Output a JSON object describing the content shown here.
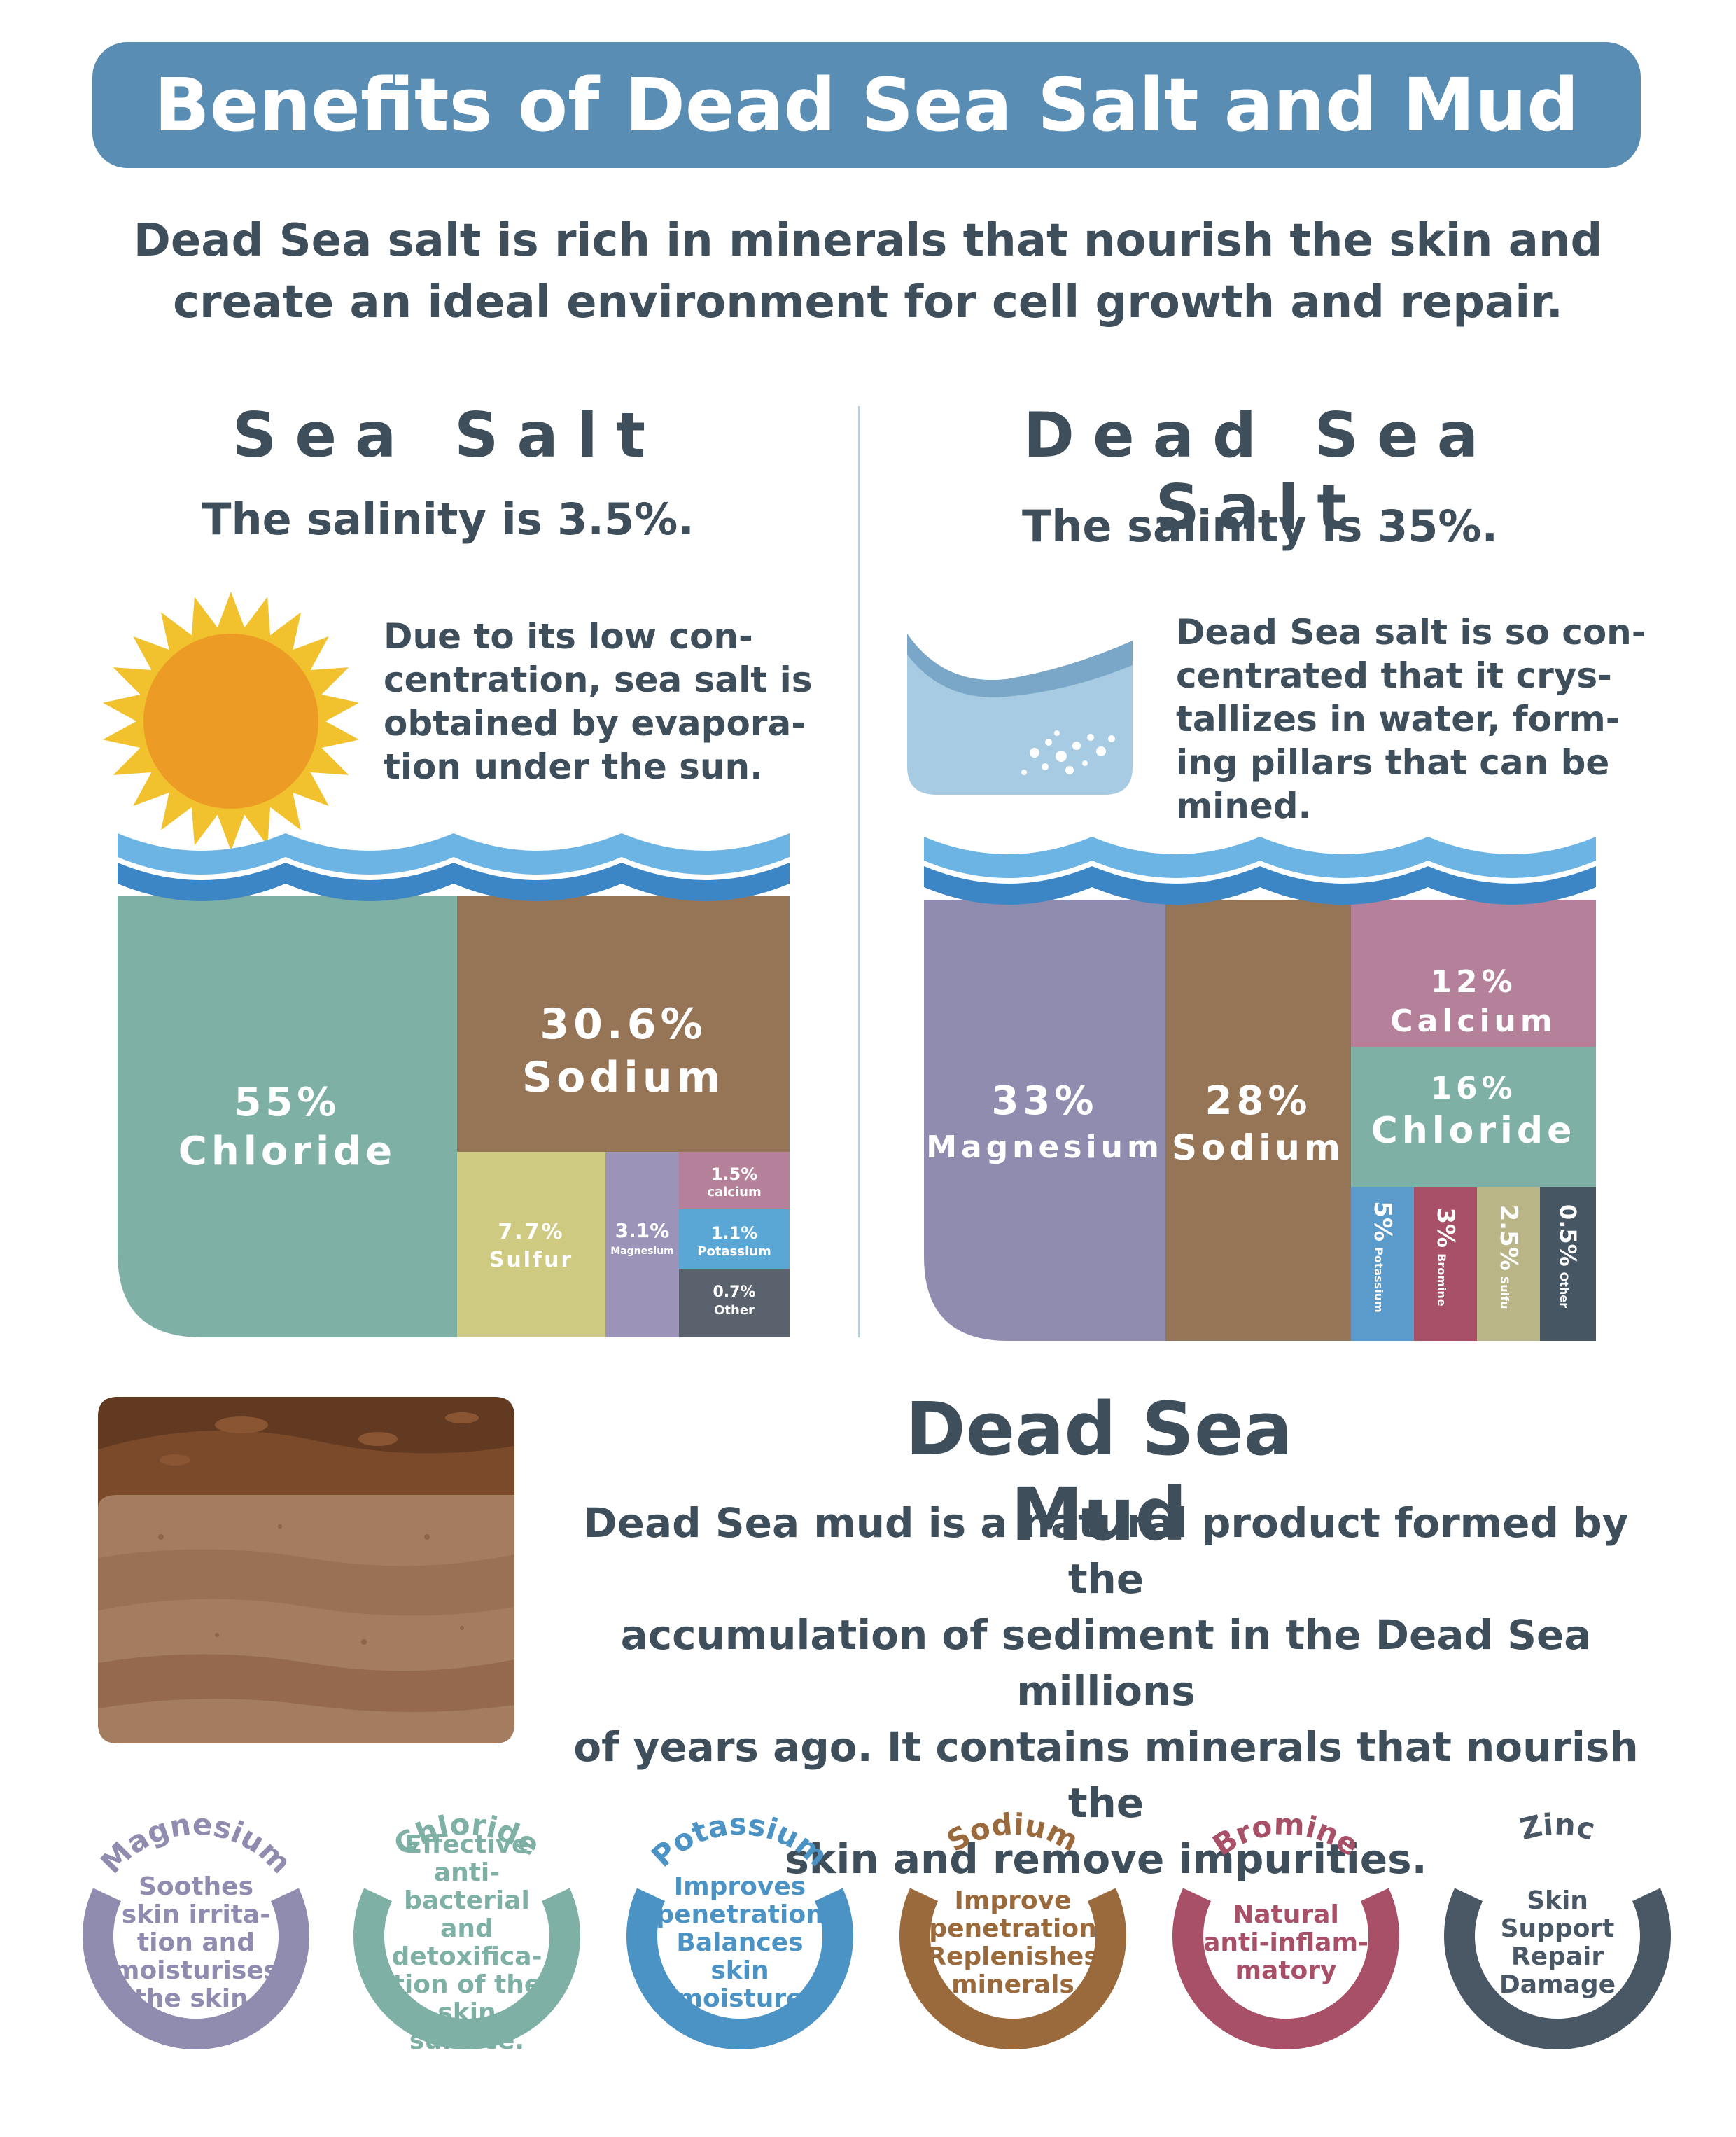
{
  "title": "Benefits of Dead Sea Salt and Mud",
  "intro": {
    "line1": "Dead Sea salt is rich in minerals that nourish the skin and",
    "line2": "create an ideal environment for cell growth and repair."
  },
  "sea_salt": {
    "heading": "Sea Salt",
    "salinity": "The salinity is 3.5%.",
    "description": [
      "Due to its low con-",
      "centration, sea salt is",
      "obtained by evapora-",
      "tion under the sun."
    ],
    "composition": [
      {
        "pct": "55%",
        "name": "Chloride",
        "value": 55,
        "color": "#7fb0a6"
      },
      {
        "pct": "30.6%",
        "name": "Sodium",
        "value": 30.6,
        "color": "#967557"
      },
      {
        "pct": "7.7%",
        "name": "Sulfur",
        "value": 7.7,
        "color": "#cfca82"
      },
      {
        "pct": "3.1%",
        "name": "Magnesium",
        "value": 3.1,
        "color": "#9b94b8"
      },
      {
        "pct": "1.5%",
        "name": "calcium",
        "value": 1.5,
        "color": "#b5819a"
      },
      {
        "pct": "1.1%",
        "name": "Potassium",
        "value": 1.1,
        "color": "#5aa6d5"
      },
      {
        "pct": "0.7%",
        "name": "Other",
        "value": 0.7,
        "color": "#5a636d"
      }
    ]
  },
  "dead_sea_salt": {
    "heading": "Dead Sea Salt",
    "salinity": "The salinity is 35%.",
    "description": [
      "Dead Sea salt is so con-",
      "centrated that it crys-",
      "tallizes in water, form-",
      "ing pillars that can be",
      "mined."
    ],
    "composition": [
      {
        "pct": "33%",
        "name": "Magnesium",
        "value": 33,
        "color": "#8f8caf"
      },
      {
        "pct": "28%",
        "name": "Sodium",
        "value": 28,
        "color": "#967557"
      },
      {
        "pct": "12%",
        "name": "Calcium",
        "value": 12,
        "color": "#b5819a"
      },
      {
        "pct": "16%",
        "name": "Chloride",
        "value": 16,
        "color": "#7fb0a6"
      },
      {
        "pct": "5%",
        "name": "Potassium",
        "value": 5,
        "color": "#5a9bcb"
      },
      {
        "pct": "3%",
        "name": "Bromine",
        "value": 3,
        "color": "#a85068"
      },
      {
        "pct": "2.5%",
        "name": "Sulfu",
        "value": 2.5,
        "color": "#b9b587"
      },
      {
        "pct": "0.5%",
        "name": "Other",
        "value": 0.5,
        "color": "#475663"
      }
    ]
  },
  "mud": {
    "heading": "Dead Sea Mud",
    "text": [
      "Dead Sea mud is a natural product formed by the",
      "accumulation of sediment in the Dead Sea millions",
      "of years ago. It contains minerals that nourish the",
      "skin and remove impurities."
    ]
  },
  "benefits": [
    {
      "mineral": "Magnesium",
      "color": "#8f8caf",
      "lines": [
        "Soothes",
        "skin irrita-",
        "tion and",
        "moisturises",
        "the skin."
      ]
    },
    {
      "mineral": "Chloride",
      "color": "#7fb0a6",
      "lines": [
        "Effective",
        "anti-bacterial",
        "and detoxifica-",
        "tion of the",
        "skin surface."
      ]
    },
    {
      "mineral": "Potassium",
      "color": "#4b93c4",
      "lines": [
        "Improves",
        "penetration",
        "Balances skin",
        "moisture"
      ]
    },
    {
      "mineral": "Sodium",
      "color": "#9a6a3c",
      "lines": [
        "Improve",
        "penetration",
        "Replenishes",
        "minerals"
      ]
    },
    {
      "mineral": "Bromine",
      "color": "#a85068",
      "lines": [
        "Natural",
        "anti-inflam-",
        "matory"
      ]
    },
    {
      "mineral": "Zinc",
      "color": "#4a5866",
      "lines": [
        "Skin",
        "Support",
        "Repair",
        "Damage"
      ]
    }
  ]
}
